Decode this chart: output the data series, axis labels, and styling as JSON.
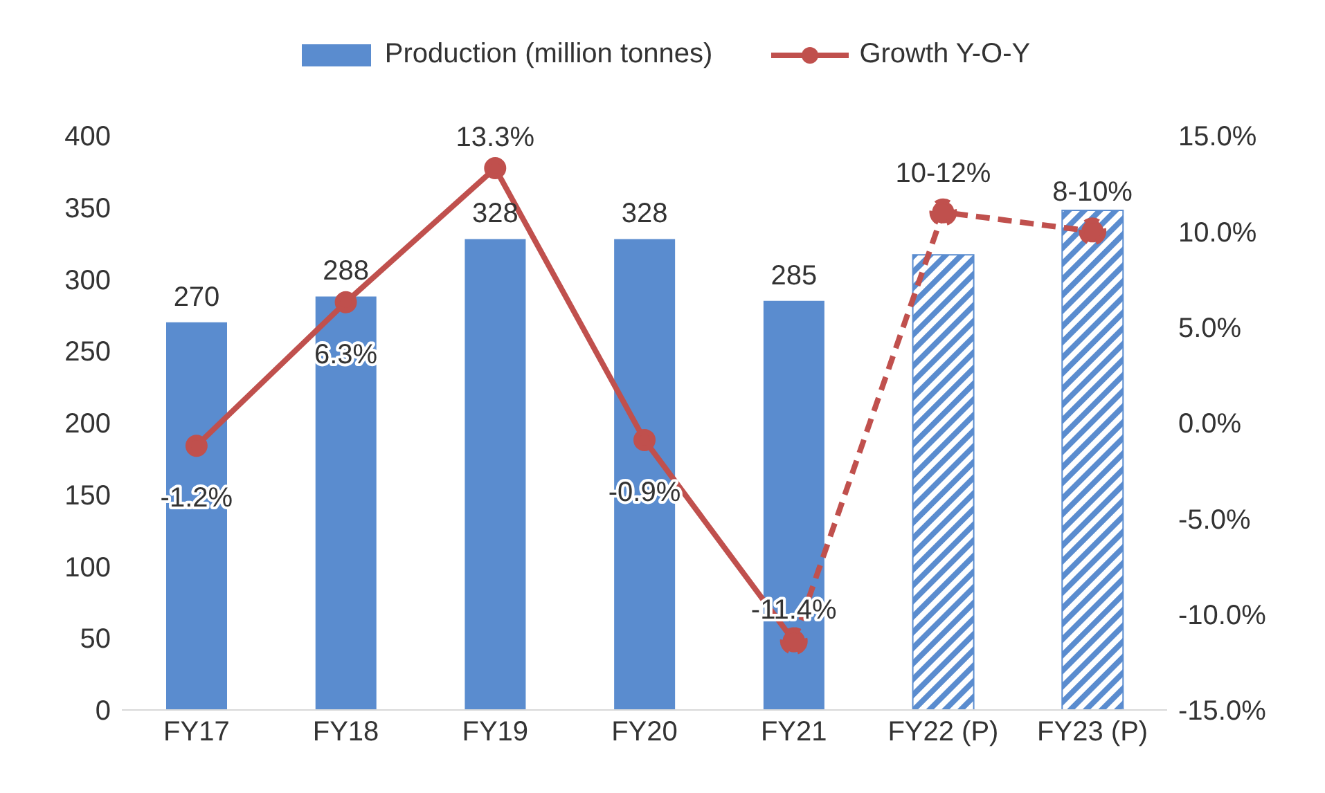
{
  "chart_data": {
    "type": "bar",
    "categories": [
      "FY17",
      "FY18",
      "FY19",
      "FY20",
      "FY21",
      "FY22 (P)",
      "FY23 (P)"
    ],
    "stacked": true,
    "series": [
      {
        "name": "Production (million tonnes)",
        "color": "#5a8ccf",
        "values": [
          270,
          288,
          328,
          328,
          285,
          null,
          null
        ],
        "value_labels": [
          "270",
          "288",
          "328",
          "328",
          "285",
          null,
          null
        ]
      },
      {
        "color": "#5a8ccf",
        "values": [
          null,
          null,
          null,
          null,
          null,
          317,
          348
        ],
        "line_style": "dashed"
      },
      {
        "type": "line",
        "axis": "y2",
        "name": "Growth Y-O-Y",
        "color": "#c0504d",
        "values": [
          -1.2,
          6.3,
          13.3,
          -0.9,
          -11.4,
          null,
          null
        ],
        "value_labels": [
          "-1.2%",
          "6.3%",
          "13.3%",
          "-0.9%",
          "-11.4%",
          null,
          null
        ],
        "line_style": "solid"
      },
      {
        "type": "line",
        "axis": "y2",
        "color": "#c0504d",
        "values": [
          null,
          null,
          null,
          null,
          -11.4,
          11,
          10
        ],
        "line_style": "dashed"
      }
    ],
    "marker": "circle",
    "ylim": [
      0,
      400
    ],
    "yticks": [
      0,
      50,
      100,
      150,
      200,
      250,
      300,
      350,
      400
    ],
    "y2lim": [
      -15,
      15
    ],
    "y2ticks": [
      {
        "value": -15,
        "label": "-15.0%"
      },
      {
        "value": -10,
        "label": "-10.0%"
      },
      {
        "value": -5,
        "label": "-5.0%"
      },
      {
        "value": 0,
        "label": "0.0%"
      },
      {
        "value": 5,
        "label": "5.0%"
      },
      {
        "value": 10,
        "label": "10.0%"
      },
      {
        "value": 15,
        "label": "15.0%"
      }
    ],
    "annotations": [
      "10-12%",
      "8-10%"
    ],
    "grid": false,
    "legend": "top"
  }
}
